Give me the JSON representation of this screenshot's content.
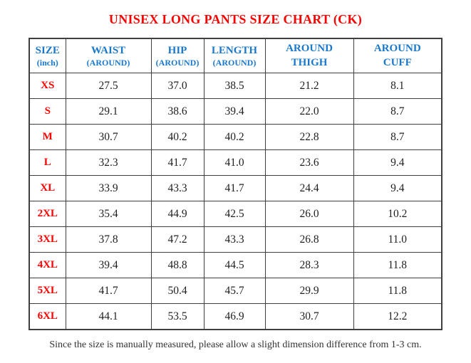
{
  "title": "UNISEX LONG PANTS SIZE CHART (CK)",
  "table": {
    "columns": [
      {
        "line1": "SIZE",
        "line2": "(inch)",
        "line2_small": true
      },
      {
        "line1": "WAIST",
        "line2": "(AROUND)",
        "line2_small": true
      },
      {
        "line1": "HIP",
        "line2": "(AROUND)",
        "line2_small": true
      },
      {
        "line1": "LENGTH",
        "line2": "(AROUND)",
        "line2_small": true
      },
      {
        "line1": "AROUND",
        "line2": "THIGH",
        "line2_small": false
      },
      {
        "line1": "AROUND",
        "line2": "CUFF",
        "line2_small": false
      }
    ],
    "rows": [
      {
        "size": "XS",
        "values": [
          "27.5",
          "37.0",
          "38.5",
          "21.2",
          "8.1"
        ]
      },
      {
        "size": "S",
        "values": [
          "29.1",
          "38.6",
          "39.4",
          "22.0",
          "8.7"
        ]
      },
      {
        "size": "M",
        "values": [
          "30.7",
          "40.2",
          "40.2",
          "22.8",
          "8.7"
        ]
      },
      {
        "size": "L",
        "values": [
          "32.3",
          "41.7",
          "41.0",
          "23.6",
          "9.4"
        ]
      },
      {
        "size": "XL",
        "values": [
          "33.9",
          "43.3",
          "41.7",
          "24.4",
          "9.4"
        ]
      },
      {
        "size": "2XL",
        "values": [
          "35.4",
          "44.9",
          "42.5",
          "26.0",
          "10.2"
        ]
      },
      {
        "size": "3XL",
        "values": [
          "37.8",
          "47.2",
          "43.3",
          "26.8",
          "11.0"
        ]
      },
      {
        "size": "4XL",
        "values": [
          "39.4",
          "48.8",
          "44.5",
          "28.3",
          "11.8"
        ]
      },
      {
        "size": "5XL",
        "values": [
          "41.7",
          "50.4",
          "45.7",
          "29.9",
          "11.8"
        ]
      },
      {
        "size": "6XL",
        "values": [
          "44.1",
          "53.5",
          "46.9",
          "30.7",
          "12.2"
        ]
      }
    ]
  },
  "footer_note": "Since the size is manually measured, please allow a slight dimension difference from 1-3 cm.",
  "colors": {
    "title_red": "#fe0000",
    "size_red": "#fe0000",
    "header_blue": "#1a78cc",
    "value_text": "#1f1f1f",
    "note_text": "#333333",
    "border": "#3f3f3f"
  }
}
